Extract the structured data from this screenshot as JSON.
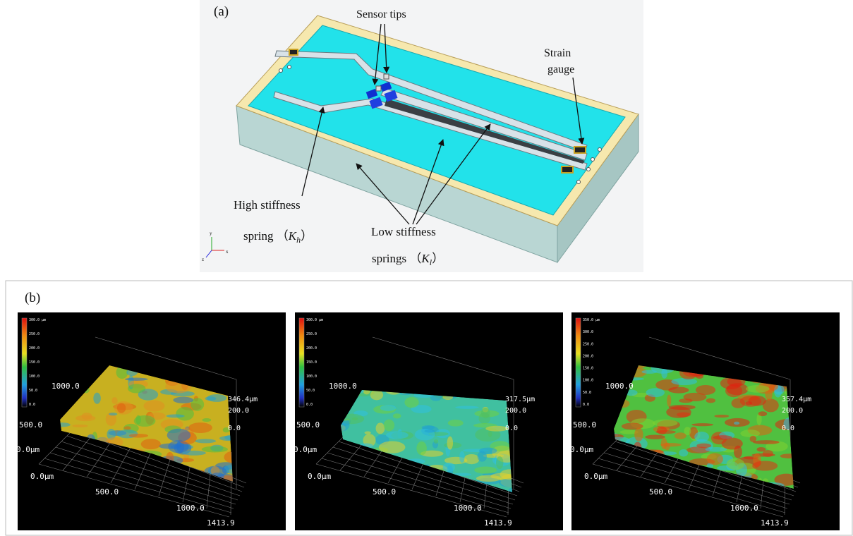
{
  "panel_a": {
    "label": "(a)",
    "callouts": {
      "sensor_tips": "Sensor tips",
      "strain_gauge": [
        "Strain",
        "gauge"
      ],
      "high_stiffness": {
        "line1": "High stiffness",
        "prefix": "spring （",
        "symbol": "K",
        "subscript": "h",
        "suffix": "）"
      },
      "low_stiffness": {
        "line1": "Low stiffness",
        "prefix": "springs （",
        "symbol": "K",
        "subscript": "l",
        "suffix": "）"
      }
    },
    "axes_triad": [
      "x",
      "y",
      "z"
    ]
  },
  "panel_b": {
    "label": "(b)",
    "plots": [
      {
        "colorbar": [
          "300.0 µm",
          "250.0",
          "200.0",
          "150.0",
          "100.0",
          "50.0",
          "0.0"
        ],
        "y_axis": [
          "1000.0",
          "500.0",
          "0.0µm"
        ],
        "x_axis": [
          "0.0µm",
          "500.0",
          "1000.0",
          "1413.9"
        ],
        "z_axis": [
          "346.4µm",
          "200.0",
          "0.0"
        ]
      },
      {
        "colorbar": [
          "300.0 µm",
          "250.0",
          "200.0",
          "150.0",
          "100.0",
          "50.0",
          "0.0"
        ],
        "y_axis": [
          "1000.0",
          "500.0",
          "0.0µm"
        ],
        "x_axis": [
          "0.0µm",
          "500.0",
          "1000.0",
          "1413.9"
        ],
        "z_axis": [
          "317.5µm",
          "200.0",
          "0.0"
        ]
      },
      {
        "colorbar": [
          "350.0 µm",
          "300.0",
          "250.0",
          "200.0",
          "150.0",
          "100.0",
          "50.0",
          "0.0"
        ],
        "y_axis": [
          "1000.0",
          "500.0",
          "0.0µm"
        ],
        "x_axis": [
          "0.0µm",
          "500.0",
          "1000.0",
          "1413.9"
        ],
        "z_axis": [
          "357.4µm",
          "200.0",
          "0.0"
        ]
      }
    ]
  }
}
